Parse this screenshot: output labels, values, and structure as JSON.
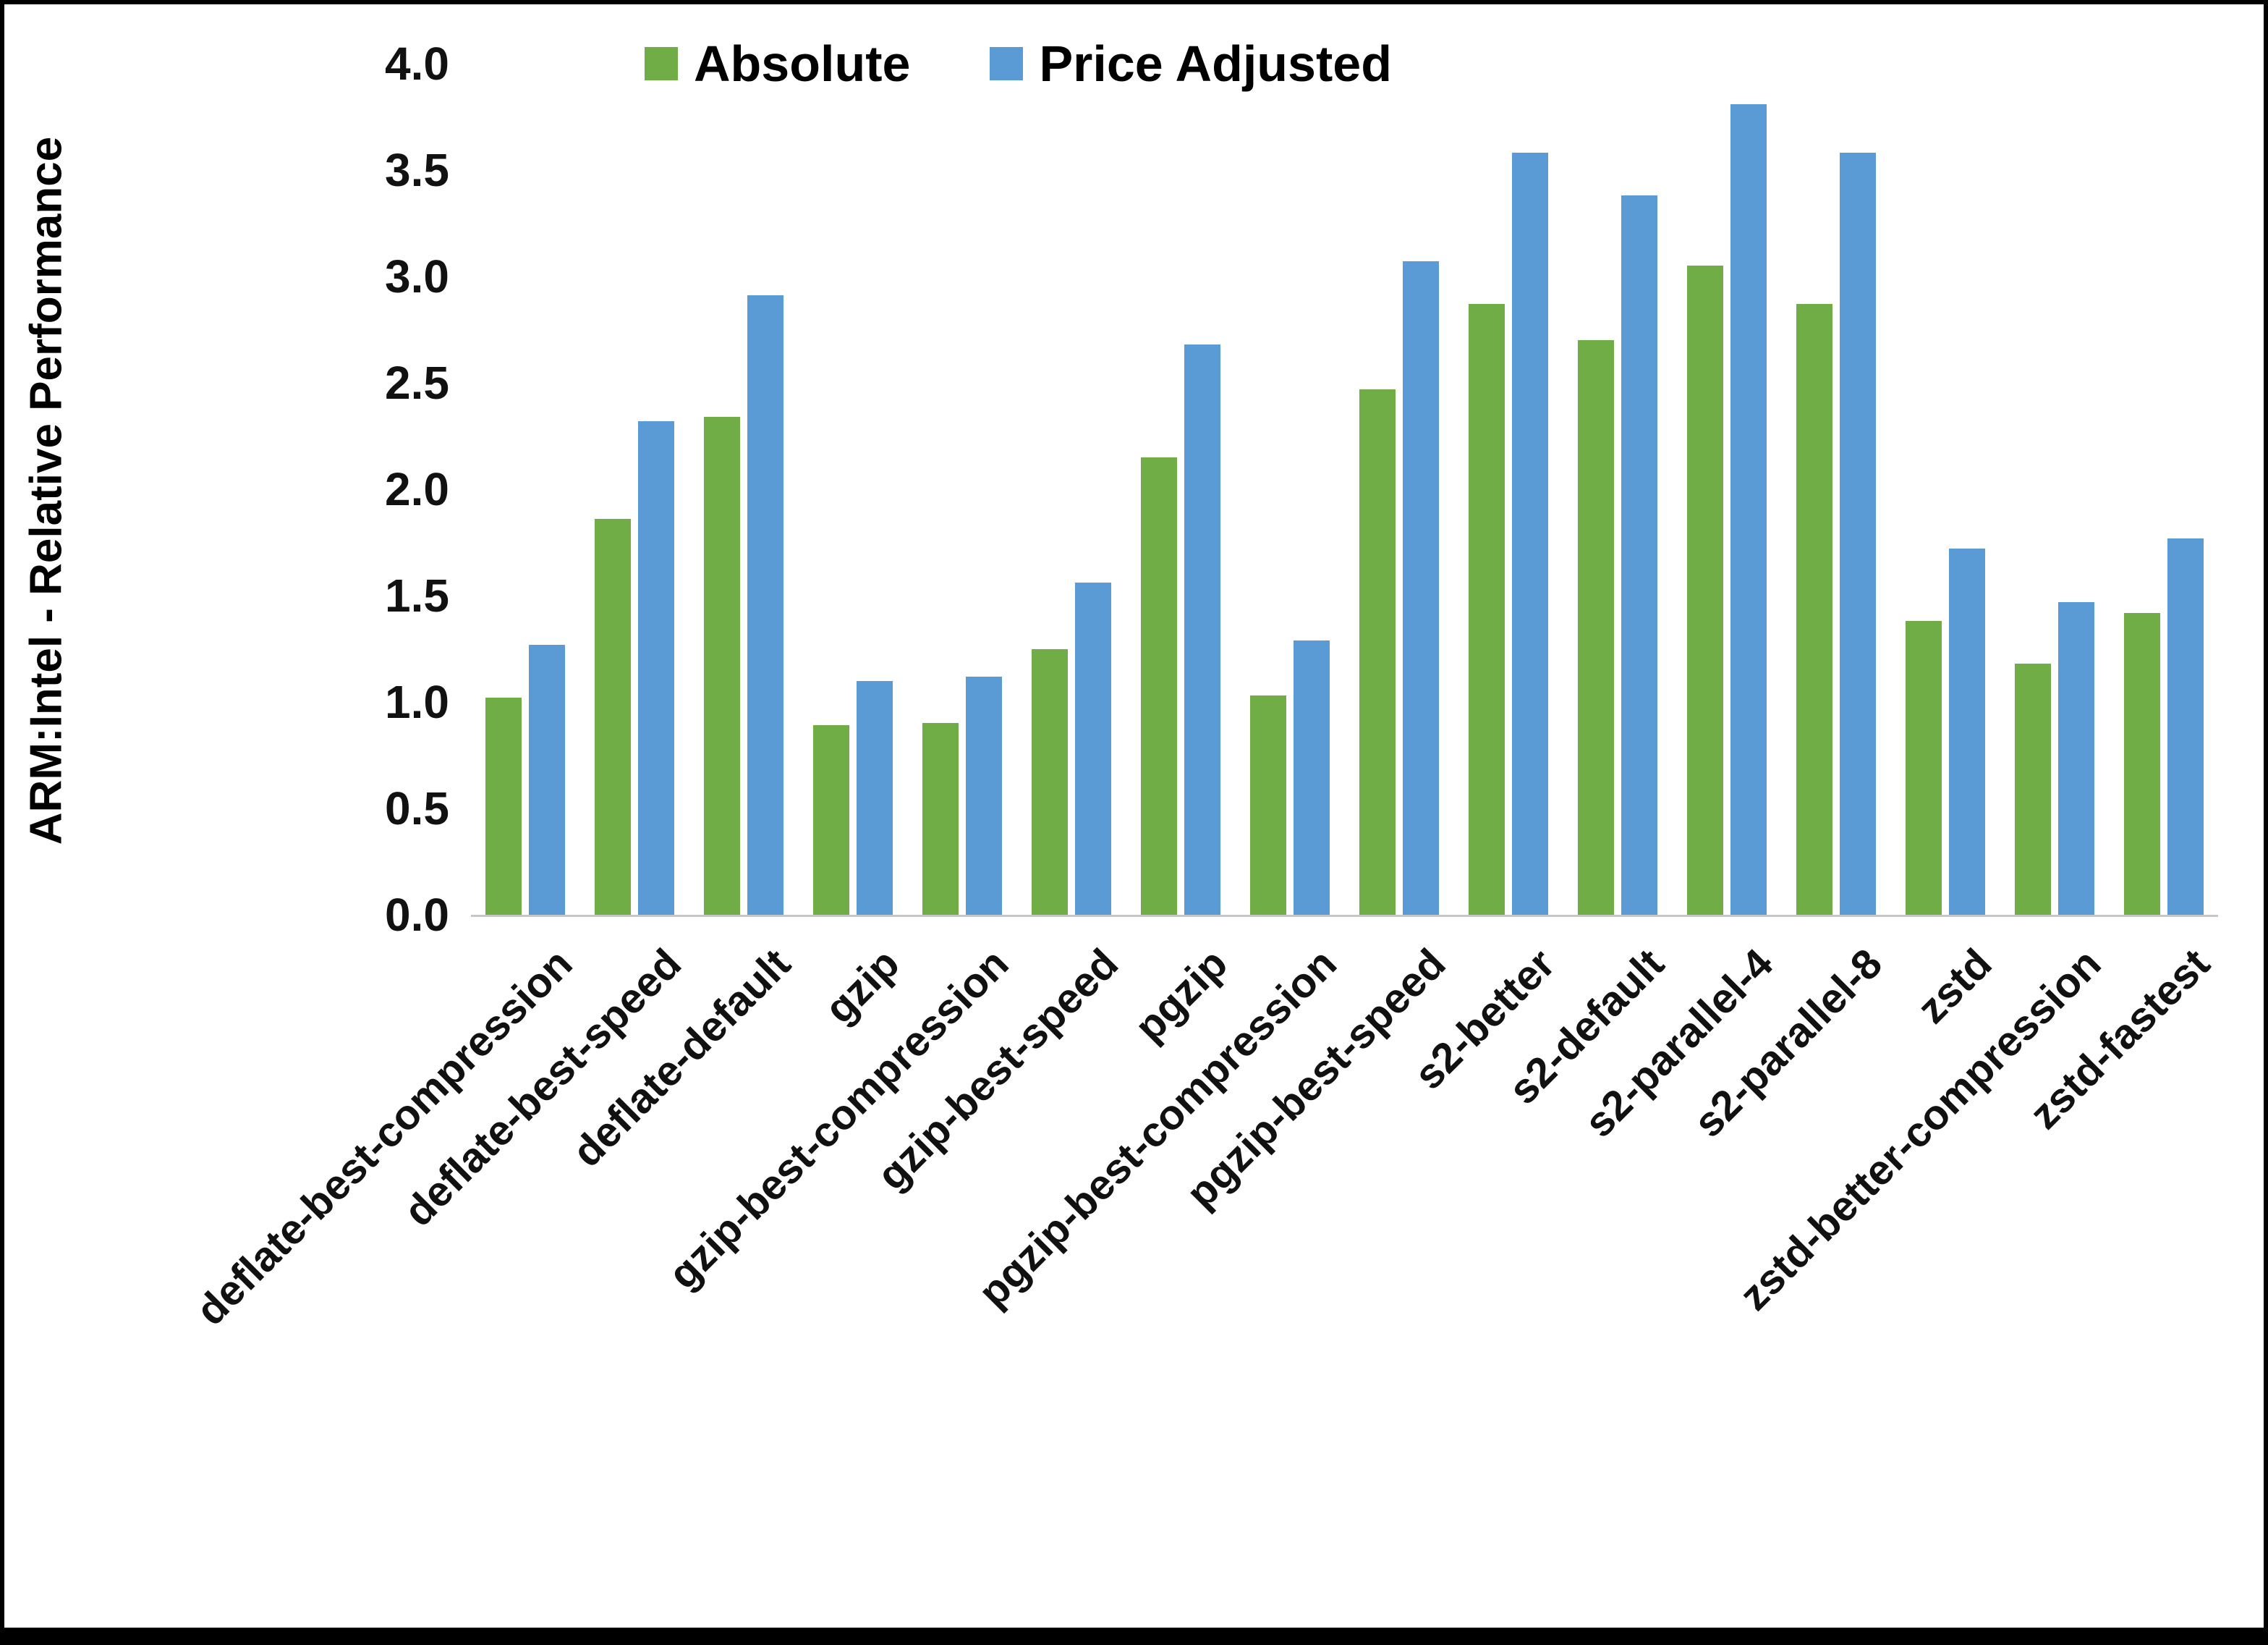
{
  "figure": {
    "background": "#ffffff",
    "border_color": "#000000"
  },
  "chart_data": {
    "type": "bar",
    "title": "",
    "xlabel": "",
    "ylabel": "ARM:Intel - Relative Performance",
    "ylim": [
      0,
      4
    ],
    "ytick_step": 0.5,
    "ytick_format_decimals": 1,
    "grid": false,
    "legend_position": "top",
    "categories": [
      "deflate-best-compression",
      "deflate-best-speed",
      "deflate-default",
      "gzip",
      "gzip-best-compression",
      "gzip-best-speed",
      "pgzip",
      "pgzip-best-compression",
      "pgzip-best-speed",
      "s2-better",
      "s2-default",
      "s2-parallel-4",
      "s2-parallel-8",
      "zstd",
      "zstd-better-compression",
      "zstd-fastest"
    ],
    "series": [
      {
        "name": "Absolute",
        "color": "#70AD47",
        "values": [
          1.02,
          1.86,
          2.34,
          0.89,
          0.9,
          1.25,
          2.15,
          1.03,
          2.47,
          2.87,
          2.7,
          3.05,
          2.87,
          1.38,
          1.18,
          1.42
        ]
      },
      {
        "name": "Price Adjusted",
        "color": "#5B9BD5",
        "values": [
          1.27,
          2.32,
          2.91,
          1.1,
          1.12,
          1.56,
          2.68,
          1.29,
          3.07,
          3.58,
          3.38,
          3.81,
          3.58,
          1.72,
          1.47,
          1.77
        ]
      }
    ]
  }
}
